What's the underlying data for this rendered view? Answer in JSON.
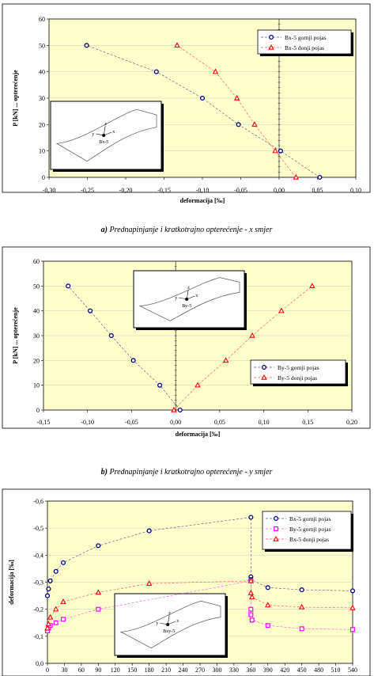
{
  "colors": {
    "plot_bg": "#FFFFCC",
    "gornji": "#000080",
    "donji": "#FF0000",
    "by_gornji": "#FF00FF",
    "grid": "#C8C8C8"
  },
  "chart_data": [
    {
      "type": "scatter",
      "xlabel": "deformacija [‰]",
      "ylabel": "P   [kN]  ... opterećenje",
      "xlim": [
        -0.3,
        0.1
      ],
      "ylim": [
        0,
        60
      ],
      "x_ticks": [
        "-0,30",
        "-0,25",
        "-0,20",
        "-0,15",
        "-0,10",
        "-0,05",
        "0,00",
        "0,05",
        "0,10"
      ],
      "y_ticks": [
        "0",
        "10",
        "20",
        "30",
        "40",
        "50",
        "60"
      ],
      "legend_placement": "top-right",
      "grid": "horizontal",
      "inset_label": "Bx-5",
      "caption_bold": "a)",
      "caption": "Prednapinjanje i kratkotrajno opterećenje - x  smjer",
      "series": [
        {
          "name": "Bx-5 gornji pojas",
          "marker": "circle",
          "color": "#000080",
          "x": [
            0.053,
            0.002,
            -0.053,
            -0.1,
            -0.16,
            -0.251
          ],
          "y": [
            0,
            10,
            20,
            30,
            40,
            50
          ]
        },
        {
          "name": "Bx-5 donji pojas",
          "marker": "triangle",
          "color": "#FF0000",
          "x": [
            0.022,
            -0.005,
            -0.032,
            -0.055,
            -0.083,
            -0.133
          ],
          "y": [
            0,
            10,
            20,
            30,
            40,
            50
          ]
        }
      ]
    },
    {
      "type": "scatter",
      "xlabel": "deformacija [‰]",
      "ylabel": "P   [kN]  ... opterećenje",
      "xlim": [
        -0.15,
        0.2
      ],
      "ylim": [
        0,
        60
      ],
      "x_ticks": [
        "-0,15",
        "-0,10",
        "-0,05",
        "0,00",
        "0,05",
        "0,10",
        "0,15",
        "0,20"
      ],
      "y_ticks": [
        "0",
        "10",
        "20",
        "30",
        "40",
        "50",
        "60"
      ],
      "legend_placement": "bottom-right",
      "grid": "horizontal",
      "inset_label": "By-5",
      "caption_bold": "b)",
      "caption": "Prednapinjanje i kratkotrajno opterećenje - y smjer",
      "series": [
        {
          "name": "By-5 gornji pojas",
          "marker": "circle",
          "color": "#000080",
          "x": [
            0.005,
            -0.018,
            -0.048,
            -0.073,
            -0.097,
            -0.122
          ],
          "y": [
            0,
            10,
            20,
            30,
            40,
            50
          ]
        },
        {
          "name": "By-5 donji pojas",
          "marker": "triangle",
          "color": "#FF0000",
          "x": [
            -0.002,
            0.025,
            0.057,
            0.087,
            0.12,
            0.155
          ],
          "y": [
            0,
            10,
            20,
            30,
            40,
            50
          ]
        }
      ]
    },
    {
      "type": "scatter",
      "xlabel": "",
      "ylabel": "deformacija [‰]",
      "xlim": [
        0,
        540
      ],
      "ylim": [
        0,
        -0.6
      ],
      "y_reversed": true,
      "x_ticks": [
        "0",
        "30",
        "60",
        "90",
        "120",
        "150",
        "180",
        "210",
        "240",
        "270",
        "300",
        "330",
        "360",
        "390",
        "420",
        "450",
        "480",
        "510",
        "540"
      ],
      "y_ticks": [
        "0,0",
        "-0,1",
        "-0,2",
        "-0,3",
        "-0,4",
        "-0,5",
        "-0,6"
      ],
      "legend_placement": "top-right",
      "grid": "horizontal",
      "inset_label": "Bxy-5",
      "series": [
        {
          "name": "Bx-5 gornji pojas",
          "marker": "circle",
          "color": "#000080",
          "x": [
            0,
            2,
            5,
            15,
            28,
            90,
            180,
            360,
            360,
            360,
            390,
            450,
            540
          ],
          "y": [
            -0.25,
            -0.275,
            -0.305,
            -0.34,
            -0.372,
            -0.435,
            -0.49,
            -0.54,
            -0.32,
            -0.31,
            -0.28,
            -0.272,
            -0.268
          ]
        },
        {
          "name": "By-5 gornji pojas",
          "marker": "square",
          "color": "#FF00FF",
          "x": [
            0,
            2,
            5,
            15,
            28,
            90,
            360,
            360,
            360,
            362,
            390,
            450,
            540
          ],
          "y": [
            -0.12,
            -0.13,
            -0.14,
            -0.15,
            -0.163,
            -0.2,
            -0.305,
            -0.2,
            -0.18,
            -0.16,
            -0.14,
            -0.128,
            -0.125
          ]
        },
        {
          "name": "Bx-5 donji pojas",
          "marker": "triangle",
          "color": "#FF0000",
          "x": [
            0,
            2,
            5,
            15,
            28,
            90,
            180,
            360,
            360,
            362,
            390,
            450,
            540
          ],
          "y": [
            -0.13,
            -0.145,
            -0.17,
            -0.2,
            -0.228,
            -0.262,
            -0.295,
            -0.305,
            -0.26,
            -0.245,
            -0.215,
            -0.208,
            -0.205
          ]
        }
      ]
    }
  ]
}
